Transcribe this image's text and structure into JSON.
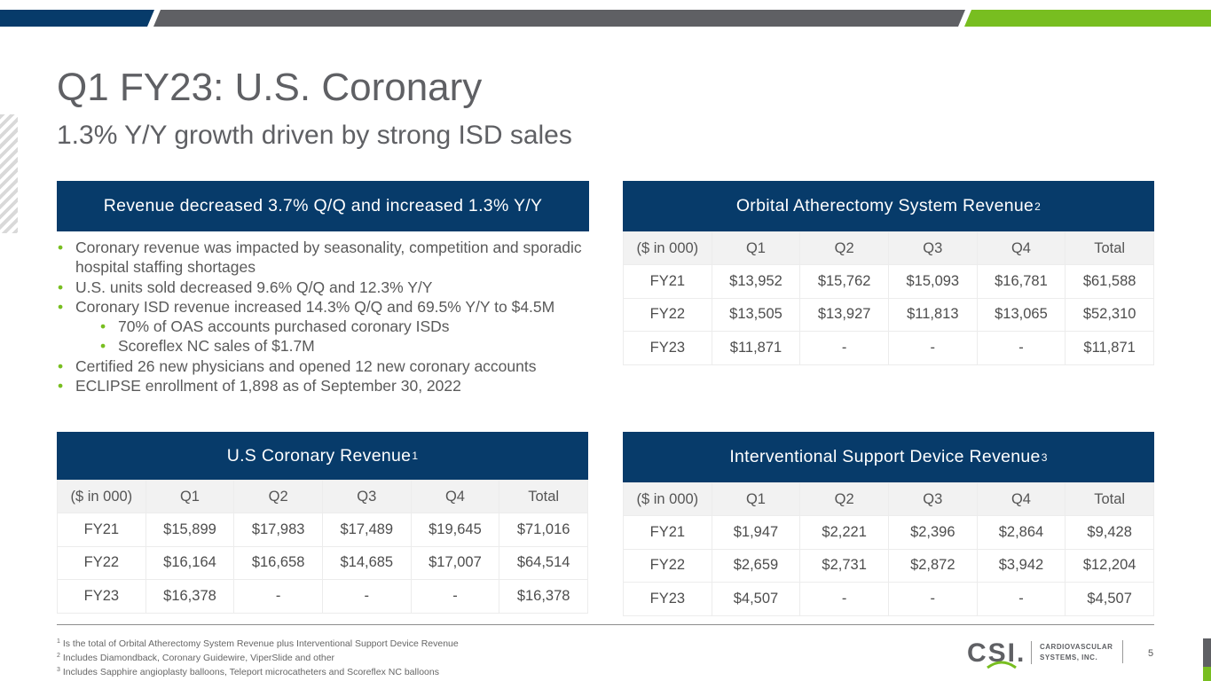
{
  "title": "Q1 FY23: U.S. Coronary",
  "subtitle": "1.3% Y/Y growth driven by strong ISD sales",
  "colors": {
    "navy": "#073b6a",
    "gray": "#5f6064",
    "green": "#78be20"
  },
  "highlights": {
    "header": "Revenue decreased 3.7% Q/Q and increased 1.3% Y/Y",
    "bullets": [
      "Coronary revenue was impacted by seasonality, competition and sporadic hospital staffing shortages",
      "U.S. units sold decreased 9.6% Q/Q and 12.3% Y/Y",
      "Coronary ISD revenue increased 14.3% Q/Q and 69.5% Y/Y to $4.5M",
      "70% of OAS accounts purchased coronary ISDs",
      "Scoreflex NC sales of $1.7M",
      "Certified 26 new physicians and opened 12 new coronary accounts",
      "ECLIPSE enrollment of 1,898 as of September 30, 2022"
    ]
  },
  "oas_table": {
    "title": "Orbital Atherectomy System Revenue",
    "sup": "2",
    "columns": [
      "($ in 000)",
      "Q1",
      "Q2",
      "Q3",
      "Q4",
      "Total"
    ],
    "rows": [
      [
        "FY21",
        "$13,952",
        "$15,762",
        "$15,093",
        "$16,781",
        "$61,588"
      ],
      [
        "FY22",
        "$13,505",
        "$13,927",
        "$11,813",
        "$13,065",
        "$52,310"
      ],
      [
        "FY23",
        "$11,871",
        "-",
        "-",
        "-",
        "$11,871"
      ]
    ]
  },
  "coronary_table": {
    "title": "U.S Coronary Revenue",
    "sup": "1",
    "columns": [
      "($ in 000)",
      "Q1",
      "Q2",
      "Q3",
      "Q4",
      "Total"
    ],
    "rows": [
      [
        "FY21",
        "$15,899",
        "$17,983",
        "$17,489",
        "$19,645",
        "$71,016"
      ],
      [
        "FY22",
        "$16,164",
        "$16,658",
        "$14,685",
        "$17,007",
        "$64,514"
      ],
      [
        "FY23",
        "$16,378",
        "-",
        "-",
        "-",
        "$16,378"
      ]
    ]
  },
  "isd_table": {
    "title": "Interventional Support Device Revenue",
    "sup": "3",
    "columns": [
      "($ in 000)",
      "Q1",
      "Q2",
      "Q3",
      "Q4",
      "Total"
    ],
    "rows": [
      [
        "FY21",
        "$1,947",
        "$2,221",
        "$2,396",
        "$2,864",
        "$9,428"
      ],
      [
        "FY22",
        "$2,659",
        "$2,731",
        "$2,872",
        "$3,942",
        "$12,204"
      ],
      [
        "FY23",
        "$4,507",
        "-",
        "-",
        "-",
        "$4,507"
      ]
    ]
  },
  "footnotes": [
    {
      "num": "1",
      "text": "Is the total of Orbital Atherectomy System Revenue plus Interventional Support Device Revenue"
    },
    {
      "num": "2",
      "text": " Includes Diamondback, Coronary Guidewire, ViperSlide and other"
    },
    {
      "num": "3",
      "text": "Includes Sapphire angioplasty balloons, Teleport microcatheters and Scoreflex NC balloons"
    }
  ],
  "logo": {
    "mark": "CSI.",
    "line1": "CARDIOVASCULAR",
    "line2": "SYSTEMS, INC."
  },
  "page_number": "5"
}
